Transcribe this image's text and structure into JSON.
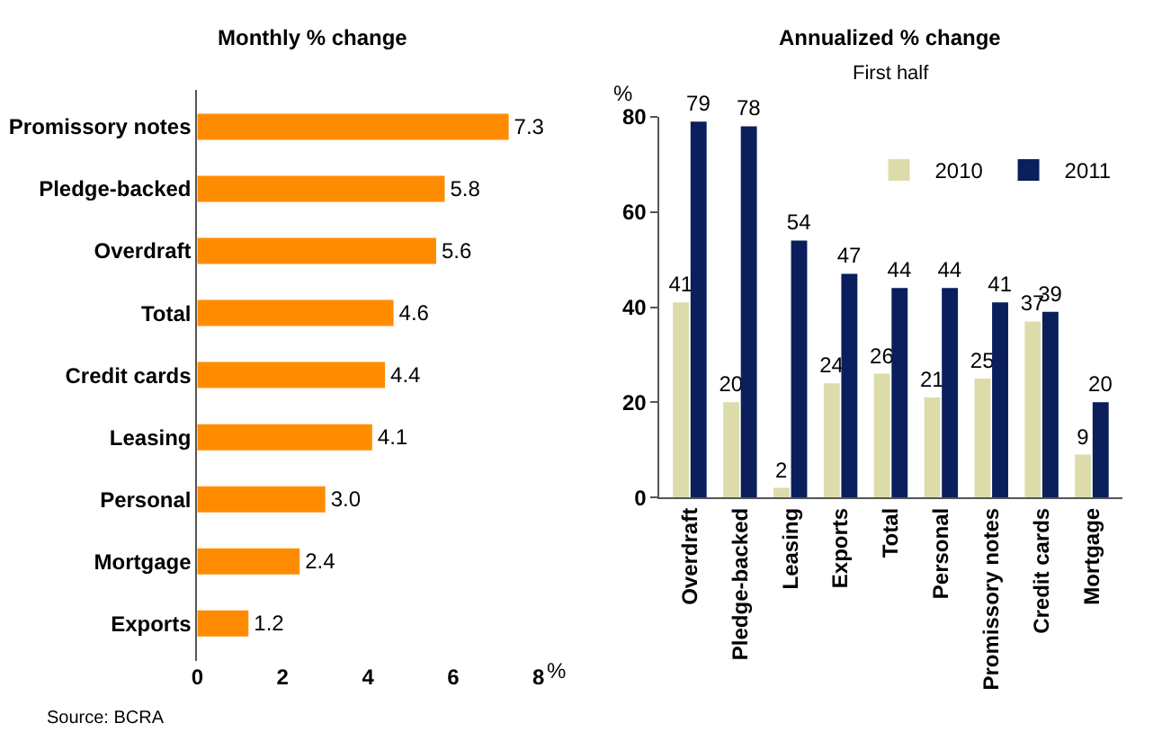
{
  "chart_data": [
    {
      "type": "bar",
      "orientation": "horizontal",
      "title": "Monthly % change",
      "xlabel": "%",
      "categories": [
        "Promissory notes",
        "Pledge-backed",
        "Overdraft",
        "Total",
        "Credit cards",
        "Leasing",
        "Personal",
        "Mortgage",
        "Exports"
      ],
      "values": [
        7.3,
        5.8,
        5.6,
        4.6,
        4.4,
        4.1,
        3.0,
        2.4,
        1.2
      ],
      "color": "#ff8c00",
      "value_labels": [
        "7.3",
        "5.8",
        "5.6",
        "4.6",
        "4.4",
        "4.1",
        "3.0",
        "2.4",
        "1.2"
      ],
      "xlim": [
        0,
        8
      ],
      "xticks": [
        0,
        2,
        4,
        6,
        8
      ],
      "legend": false,
      "annotations": [
        "Source: BCRA"
      ]
    },
    {
      "type": "bar",
      "title": "Annualized % change",
      "subtitle": "First half",
      "ylabel": "%",
      "categories": [
        "Overdraft",
        "Pledge-backed",
        "Leasing",
        "Exports",
        "Total",
        "Personal",
        "Promissory notes",
        "Credit cards",
        "Mortgage"
      ],
      "series": [
        {
          "name": "2010",
          "color": "#dcdcaa",
          "values": [
            41,
            20,
            2,
            24,
            26,
            21,
            25,
            37,
            9
          ]
        },
        {
          "name": "2011",
          "color": "#0a1f5c",
          "values": [
            79,
            78,
            54,
            47,
            44,
            44,
            41,
            39,
            20
          ]
        }
      ],
      "data_labels": true,
      "ylim": [
        0,
        80
      ],
      "yticks": [
        0,
        20,
        40,
        60,
        80
      ],
      "legend": "top right"
    }
  ]
}
